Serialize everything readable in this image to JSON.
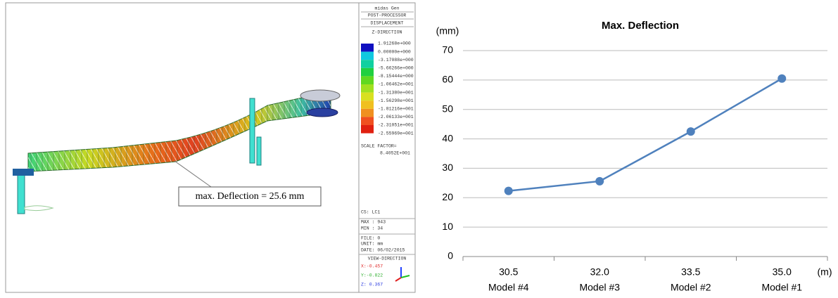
{
  "chart_data": {
    "type": "line",
    "title": "Max. Deflection",
    "y_label": "(mm)",
    "x_label": "(m)",
    "categories": [
      "30.5",
      "32.0",
      "33.5",
      "35.0"
    ],
    "category_sublabels": [
      "Model #4",
      "Model #3",
      "Model #2",
      "Model #1"
    ],
    "values": [
      22.3,
      25.6,
      42.5,
      60.5
    ],
    "color": "#4f81bd",
    "ylim": [
      0,
      70
    ],
    "yticks": [
      0,
      10,
      20,
      30,
      40,
      50,
      60,
      70
    ],
    "grid": true
  },
  "fe_panel": {
    "header": [
      "midas Gen",
      "POST-PROCESSOR",
      "DISPLACEMENT",
      "Z-DIRECTION"
    ],
    "legend_values": [
      "1.91268e+000",
      "0.00000e+000",
      "-3.17088e+000",
      "-5.66266e+000",
      "-8.15444e+000",
      "-1.06462e+001",
      "-1.31380e+001",
      "-1.56298e+001",
      "-1.81216e+001",
      "-2.06133e+001",
      "-2.31051e+001",
      "-2.55969e+001"
    ],
    "scale": [
      "SCALE FACTOR=",
      "8.4052E+001"
    ],
    "info": [
      "CS: LC1",
      "MAX : 943",
      "MIN : 34",
      "FILE: 0",
      "UNIT: mm",
      "DATE: 06/02/2015",
      "VIEW-DIRECTION"
    ],
    "view": [
      "X:-0.457",
      "Y:-0.822",
      "Z: 0.367"
    ],
    "annotation": "max. Deflection = 25.6 mm"
  }
}
